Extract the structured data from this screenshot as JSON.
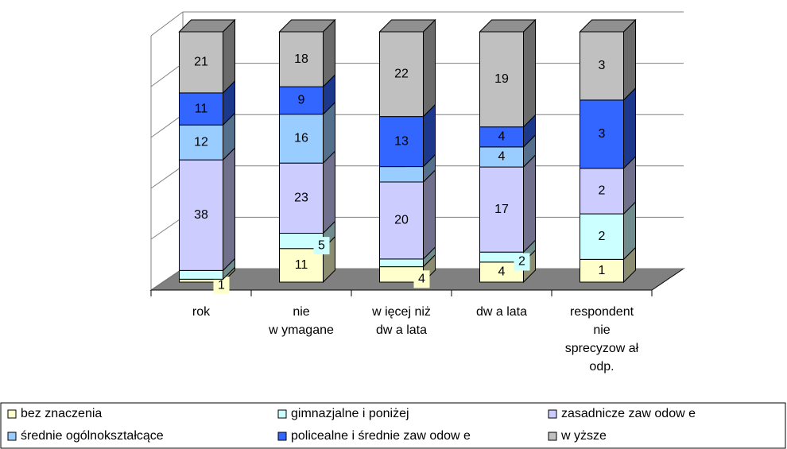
{
  "chart_data": {
    "type": "bar",
    "stacked_percent": true,
    "categories": [
      "rok",
      "nie\nw ymagane",
      "w ięcej niż\ndw a lata",
      "dw a lata",
      "respondent\nnie\nsprecyzow ał\nodp."
    ],
    "series": [
      {
        "name": "bez znaczenia",
        "color": "#ffffcc",
        "values": [
          1,
          11,
          4,
          4,
          1
        ]
      },
      {
        "name": "gimnazjalne i poniżej",
        "color": "#ccffff",
        "values": [
          3,
          5,
          2,
          2,
          2
        ]
      },
      {
        "name": "zasadnicze zaw odow e",
        "color": "#ccccff",
        "values": [
          38,
          23,
          20,
          17,
          2
        ]
      },
      {
        "name": "średnie ogólnokształcące",
        "color": "#99ccff",
        "values": [
          12,
          16,
          4,
          4,
          null
        ]
      },
      {
        "name": "policealne i średnie zaw odow e",
        "color": "#3366ff",
        "values": [
          11,
          9,
          13,
          4,
          3
        ]
      },
      {
        "name": "w yższe",
        "color": "#c0c0c0",
        "values": [
          21,
          18,
          22,
          19,
          3
        ]
      }
    ],
    "ylim": [
      0,
      100
    ],
    "yticks": [
      0,
      20,
      40,
      60,
      80,
      100
    ],
    "grid": true
  }
}
